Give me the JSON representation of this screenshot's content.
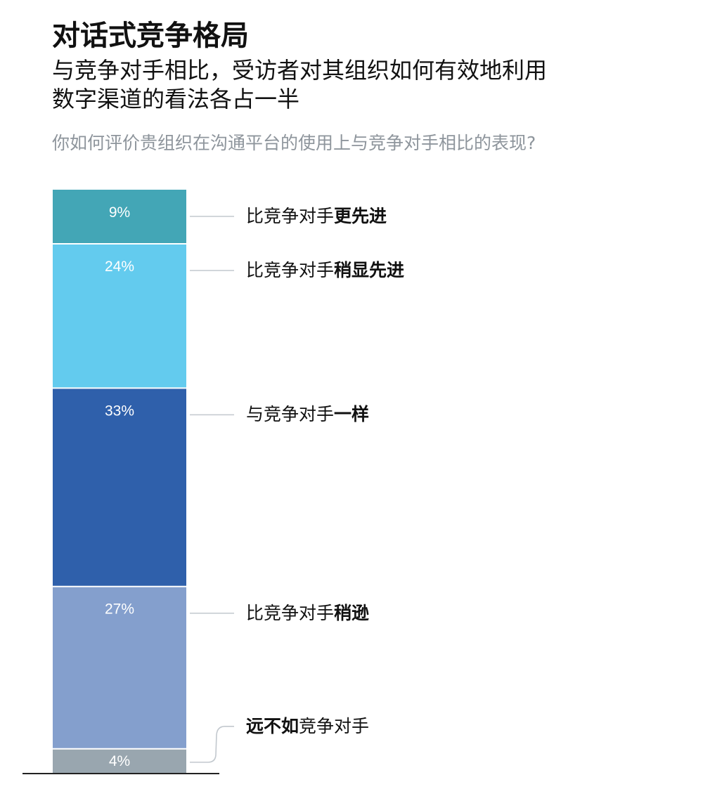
{
  "title": "对话式竞争格局",
  "subtitle_lines": [
    "与竞争对手相比，受访者对其组织如何有效地利用",
    "数字渠道的看法各占一半"
  ],
  "question": "你如何评价贵组织在沟通平台的使用上与竞争对手相比的表现?",
  "chart_data": {
    "type": "bar",
    "stacked": true,
    "orientation": "vertical",
    "categories": [
      {
        "label_plain": "比竞争对手",
        "label_bold": "更先进",
        "bold_first": false
      },
      {
        "label_plain": "比竞争对手",
        "label_bold": "稍显先进",
        "bold_first": false
      },
      {
        "label_plain": "与竞争对手",
        "label_bold": "一样",
        "bold_first": false
      },
      {
        "label_plain": "比竞争对手",
        "label_bold": "稍逊",
        "bold_first": false
      },
      {
        "label_plain": "竞争对手",
        "label_bold": "远不如",
        "bold_first": true
      }
    ],
    "values": [
      9,
      24,
      33,
      27,
      4
    ],
    "value_labels": [
      "9%",
      "24%",
      "33%",
      "27%",
      "4%"
    ],
    "colors": [
      "#43a6b6",
      "#63cbee",
      "#2f60ab",
      "#849fcd",
      "#99a6af"
    ],
    "unit": "%"
  }
}
